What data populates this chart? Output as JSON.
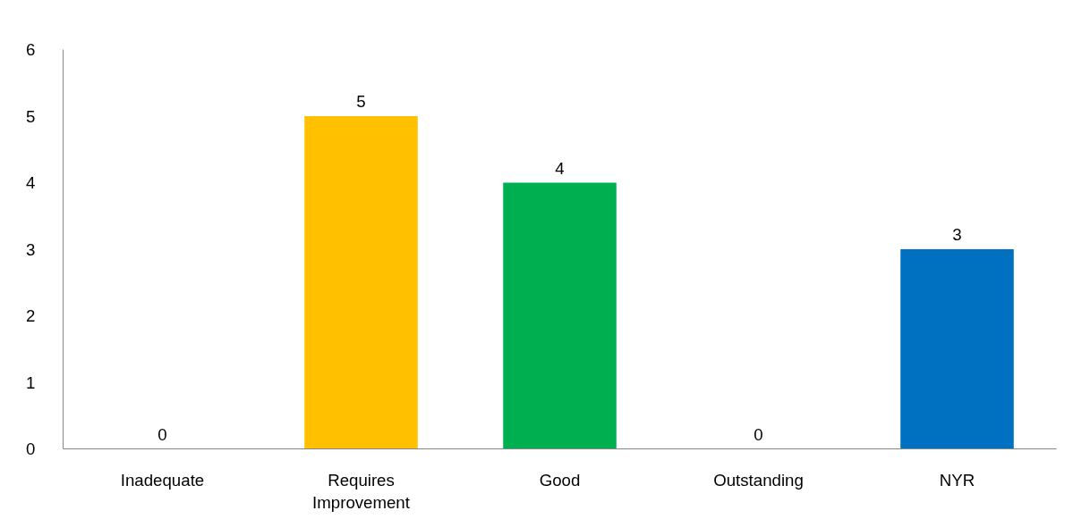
{
  "chart_data": {
    "type": "bar",
    "categories": [
      "Inadequate",
      "Requires Improvement",
      "Good",
      "Outstanding",
      "NYR"
    ],
    "values": [
      0,
      5,
      4,
      0,
      3
    ],
    "colors": [
      null,
      "#ffc000",
      "#00b050",
      null,
      "#0070c0"
    ],
    "ylim": [
      0,
      6
    ],
    "yticks": [
      0,
      1,
      2,
      3,
      4,
      5,
      6
    ],
    "grid": false,
    "data_labels": true
  }
}
